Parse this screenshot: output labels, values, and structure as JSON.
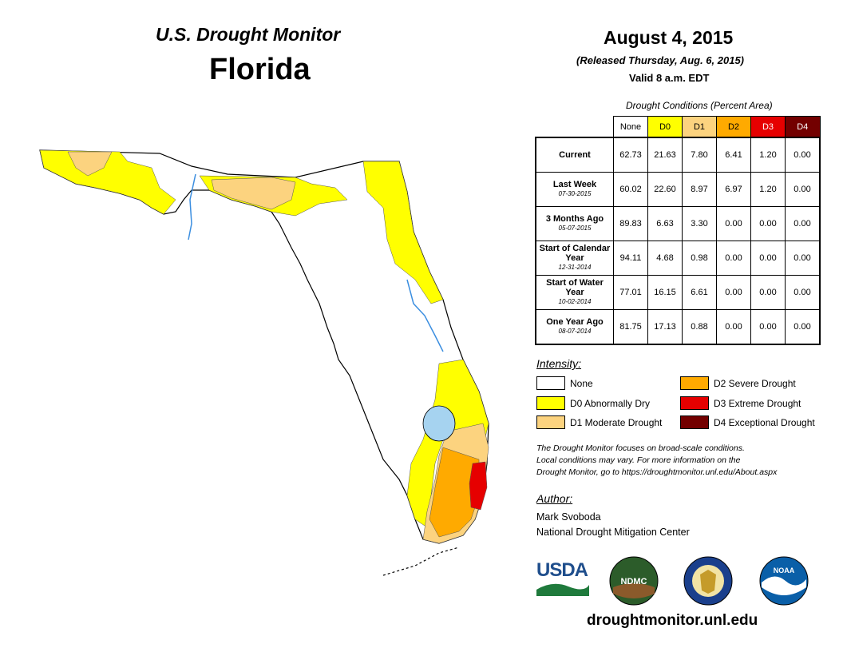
{
  "header": {
    "title": "U.S. Drought Monitor",
    "state": "Florida",
    "date": "August 4, 2015",
    "released": "(Released Thursday, Aug. 6, 2015)",
    "valid": "Valid 8 a.m. EDT"
  },
  "conditions_table": {
    "caption": "Drought Conditions (Percent Area)",
    "columns": [
      "None",
      "D0",
      "D1",
      "D2",
      "D3",
      "D4"
    ],
    "column_colors": [
      "#ffffff",
      "#ffff00",
      "#fcd37f",
      "#ffaa00",
      "#e60000",
      "#730000"
    ],
    "rows": [
      {
        "label": "Current",
        "date": "",
        "values": [
          "62.73",
          "21.63",
          "7.80",
          "6.41",
          "1.20",
          "0.00"
        ]
      },
      {
        "label": "Last Week",
        "date": "07-30-2015",
        "values": [
          "60.02",
          "22.60",
          "8.97",
          "6.97",
          "1.20",
          "0.00"
        ]
      },
      {
        "label": "3 Months Ago",
        "date": "05-07-2015",
        "values": [
          "89.83",
          "6.63",
          "3.30",
          "0.00",
          "0.00",
          "0.00"
        ]
      },
      {
        "label": "Start of Calendar Year",
        "date": "12-31-2014",
        "values": [
          "94.11",
          "4.68",
          "0.98",
          "0.00",
          "0.00",
          "0.00"
        ]
      },
      {
        "label": "Start of Water Year",
        "date": "10-02-2014",
        "values": [
          "77.01",
          "16.15",
          "6.61",
          "0.00",
          "0.00",
          "0.00"
        ]
      },
      {
        "label": "One Year Ago",
        "date": "08-07-2014",
        "values": [
          "81.75",
          "17.13",
          "0.88",
          "0.00",
          "0.00",
          "0.00"
        ]
      }
    ]
  },
  "legend": {
    "heading": "Intensity:",
    "items": [
      {
        "label": "None",
        "color": "#ffffff"
      },
      {
        "label": "D0 Abnormally Dry",
        "color": "#ffff00"
      },
      {
        "label": "D1 Moderate Drought",
        "color": "#fcd37f"
      },
      {
        "label": "D2 Severe Drought",
        "color": "#ffaa00"
      },
      {
        "label": "D3 Extreme Drought",
        "color": "#e60000"
      },
      {
        "label": "D4 Exceptional Drought",
        "color": "#730000"
      }
    ]
  },
  "note": {
    "line1": "The Drought Monitor focuses on broad-scale conditions.",
    "line2": "Local conditions may vary. For more information on the",
    "line3": "Drought Monitor, go to https://droughtmonitor.unl.edu/About.aspx"
  },
  "author": {
    "heading": "Author:",
    "name": "Mark Svoboda",
    "org": "National Drought Mitigation Center"
  },
  "logos": {
    "usda": "USDA",
    "ndmc": "NDMC",
    "noaa": "NOAA"
  },
  "footer_url": "droughtmonitor.unl.edu",
  "map_colors": {
    "none": "#ffffff",
    "d0": "#ffff00",
    "d1": "#fcd37f",
    "d2": "#ffaa00",
    "d3": "#e60000",
    "water": "#a6d3f0",
    "river": "#3b8ee0"
  }
}
